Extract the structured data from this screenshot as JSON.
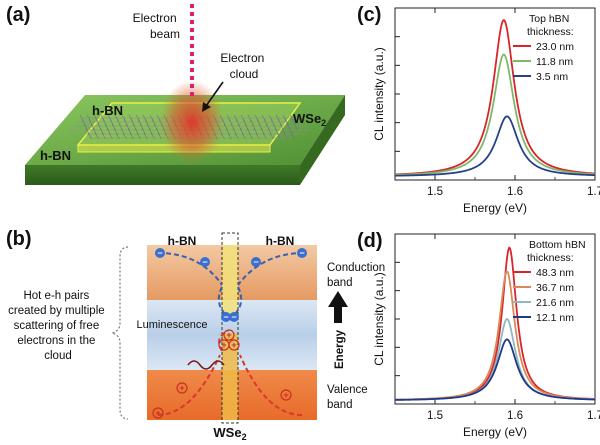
{
  "panels": {
    "a": {
      "label": "(a)",
      "electron_beam_label": [
        "Electron",
        "beam"
      ],
      "electron_cloud_label": [
        "Electron",
        "cloud"
      ],
      "hbn_top_label": "h-BN",
      "hbn_bottom_label": "h-BN",
      "material_label": "WSe",
      "material_sub": "2"
    },
    "b": {
      "label": "(b)",
      "hbn_left_label": "h-BN",
      "hbn_right_label": "h-BN",
      "conduction_label": [
        "Conduction",
        "band"
      ],
      "valence_label": [
        "Valence",
        "band"
      ],
      "energy_label": "Energy",
      "luminescence_label": "Luminescence",
      "material_label": "WSe",
      "material_sub": "2",
      "description": [
        "Hot e-h pairs",
        "created by multiple",
        "scattering of free",
        "electrons in the",
        "cloud"
      ],
      "electron_symbol": "−",
      "hole_symbol": "+"
    },
    "c": {
      "label": "(c)"
    },
    "d": {
      "label": "(d)"
    }
  },
  "colors": {
    "red": "#d9252a",
    "green": "#7fb86a",
    "blue": "#27408b",
    "orange": "#d88a5a",
    "teal": "#8fb7c0",
    "navy": "#1e3a8a",
    "platform_green": "#6fb04a",
    "beam_magenta": "#d6246e"
  },
  "chart_data": [
    {
      "id": "c",
      "type": "line",
      "title": "",
      "xlabel": "Energy (eV)",
      "ylabel": "CL intensity (a.u.)",
      "xlim": [
        1.45,
        1.7
      ],
      "ylim": [
        0,
        1
      ],
      "xticks": [
        1.5,
        1.6,
        1.7
      ],
      "xtick_labels": [
        "1.5",
        "1.6",
        "1.7"
      ],
      "y_tick_labels_shown": false,
      "legend_title": [
        "Top hBN",
        "thickness:"
      ],
      "legend_position": "top-right",
      "series": [
        {
          "name": "23.0 nm",
          "color": "#d9252a",
          "peak_x": 1.586,
          "peak_y": 0.93,
          "base_y": 0.02,
          "width": 0.016
        },
        {
          "name": "11.8 nm",
          "color": "#7fb86a",
          "peak_x": 1.586,
          "peak_y": 0.73,
          "base_y": 0.02,
          "width": 0.016
        },
        {
          "name": "3.5 nm",
          "color": "#27408b",
          "peak_x": 1.59,
          "peak_y": 0.37,
          "base_y": 0.02,
          "width": 0.017
        }
      ]
    },
    {
      "id": "d",
      "type": "line",
      "title": "",
      "xlabel": "Energy (eV)",
      "ylabel": "CL intensity (a.u.)",
      "xlim": [
        1.45,
        1.7
      ],
      "ylim": [
        0,
        1
      ],
      "xticks": [
        1.5,
        1.6,
        1.7
      ],
      "xtick_labels": [
        "1.5",
        "1.6",
        "1.7"
      ],
      "y_tick_labels_shown": false,
      "legend_title": [
        "Bottom hBN",
        "thickness:"
      ],
      "legend_position": "top-right",
      "series": [
        {
          "name": "48.3 nm",
          "color": "#d9252a",
          "peak_x": 1.593,
          "peak_y": 0.92,
          "base_y": 0.02,
          "width": 0.011
        },
        {
          "name": "36.7 nm",
          "color": "#d88a5a",
          "peak_x": 1.59,
          "peak_y": 0.78,
          "base_y": 0.02,
          "width": 0.012
        },
        {
          "name": "21.6 nm",
          "color": "#8fb7c0",
          "peak_x": 1.59,
          "peak_y": 0.5,
          "base_y": 0.02,
          "width": 0.013
        },
        {
          "name": "12.1 nm",
          "color": "#1e3a8a",
          "peak_x": 1.59,
          "peak_y": 0.38,
          "base_y": 0.02,
          "width": 0.015
        }
      ]
    }
  ]
}
